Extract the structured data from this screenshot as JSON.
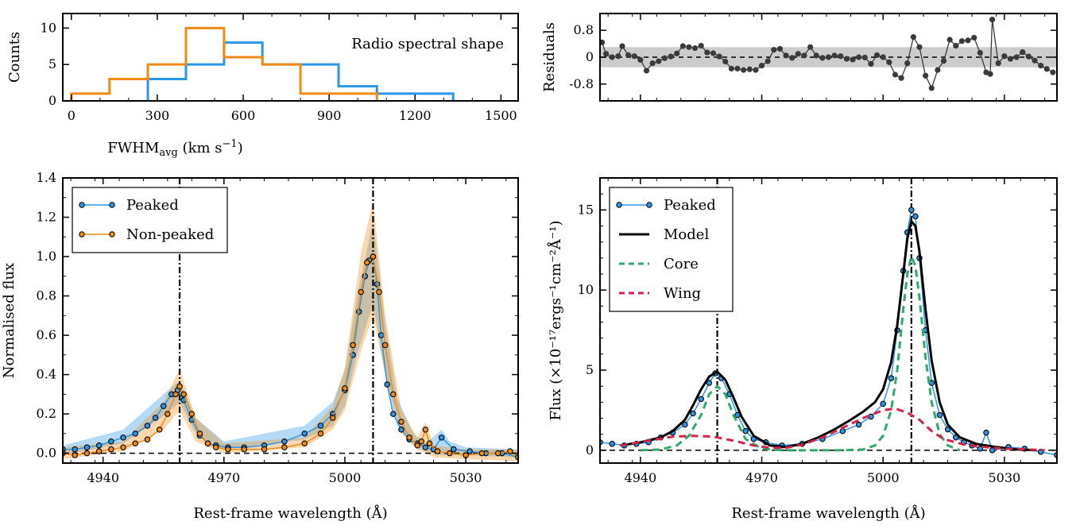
{
  "colors": {
    "peaked": "#2b96e6",
    "non_peaked": "#f08c14",
    "model": "#000000",
    "core": "#2eaa6a",
    "wing": "#d4224a",
    "residual": "#3a3a3a",
    "band": "#cccccc"
  },
  "chart_data": [
    {
      "id": "hist",
      "type": "histogram",
      "title": "",
      "annotation": "Radio spectral shape",
      "xlabel": "FWHM",
      "xlabel_sub": "avg",
      "xlabel_units": " (km s",
      "xlabel_sup": "−1",
      "xlabel_close": ")",
      "ylabel": "Counts",
      "xlim": [
        -30,
        1560
      ],
      "ylim": [
        0,
        12
      ],
      "xticks": [
        0,
        300,
        600,
        900,
        1200,
        1500
      ],
      "xtick_labels": [
        "0",
        "300",
        "600",
        "900",
        "1200",
        "1500"
      ],
      "yticks": [
        0,
        5,
        10
      ],
      "ytick_labels": [
        "0",
        "5",
        "10"
      ],
      "series": [
        {
          "key": "peaked",
          "edges": [
            267,
            400,
            533,
            667,
            800,
            933,
            1067,
            1200,
            1333
          ],
          "counts": [
            3,
            5,
            8,
            5,
            5,
            2,
            1,
            1
          ]
        },
        {
          "key": "non_peaked",
          "edges": [
            0,
            133,
            267,
            400,
            533,
            667,
            800,
            933,
            1067
          ],
          "counts": [
            1,
            3,
            5,
            10,
            6,
            5,
            1,
            1
          ]
        }
      ],
      "xbaseline": [
        1067,
        1545
      ]
    },
    {
      "id": "resid",
      "type": "line",
      "title": "",
      "ylabel": "Residuals",
      "xlim": [
        4930,
        5043
      ],
      "ylim": [
        -1.3,
        1.3
      ],
      "yticks": [
        -0.8,
        0,
        0.8
      ],
      "ytick_labels": [
        "-0.8",
        "0",
        "0.8"
      ],
      "band": [
        -0.3,
        0.3
      ],
      "points": [
        [
          4930.5,
          0.44
        ],
        [
          4931.5,
          0.1
        ],
        [
          4933,
          0.0
        ],
        [
          4934.5,
          0.03
        ],
        [
          4935.5,
          0.33
        ],
        [
          4937,
          0.06
        ],
        [
          4938.5,
          0.03
        ],
        [
          4940,
          -0.08
        ],
        [
          4941.5,
          -0.4
        ],
        [
          4943,
          -0.18
        ],
        [
          4944.5,
          -0.12
        ],
        [
          4946,
          -0.03
        ],
        [
          4947.5,
          0.02
        ],
        [
          4949,
          0.11
        ],
        [
          4950.5,
          0.33
        ],
        [
          4952,
          0.3
        ],
        [
          4953.5,
          0.27
        ],
        [
          4955,
          0.34
        ],
        [
          4956.5,
          0.14
        ],
        [
          4958,
          0.12
        ],
        [
          4959.5,
          0.02
        ],
        [
          4961,
          -0.13
        ],
        [
          4962.5,
          -0.34
        ],
        [
          4964,
          -0.34
        ],
        [
          4965.5,
          -0.38
        ],
        [
          4967,
          -0.36
        ],
        [
          4968.5,
          -0.38
        ],
        [
          4970,
          -0.25
        ],
        [
          4971.5,
          -0.12
        ],
        [
          4973,
          0.22
        ],
        [
          4974.5,
          0.25
        ],
        [
          4976,
          0.05
        ],
        [
          4977.5,
          -0.02
        ],
        [
          4979,
          0.1
        ],
        [
          4980.5,
          0.05
        ],
        [
          4982,
          0.3
        ],
        [
          4983.5,
          0.05
        ],
        [
          4985,
          -0.02
        ],
        [
          4986.5,
          0.0
        ],
        [
          4988,
          0.05
        ],
        [
          4989.5,
          0.03
        ],
        [
          4991,
          -0.05
        ],
        [
          4992.5,
          -0.07
        ],
        [
          4994,
          0.0
        ],
        [
          4995.5,
          -0.01
        ],
        [
          4997,
          -0.2
        ],
        [
          4998.5,
          0.06
        ],
        [
          5000,
          0.0
        ],
        [
          5001.5,
          -0.15
        ],
        [
          5003,
          -0.52
        ],
        [
          5004.5,
          -0.62
        ],
        [
          5006,
          -0.18
        ],
        [
          5007.5,
          0.6
        ],
        [
          5009,
          0.3
        ],
        [
          5010.5,
          -0.55
        ],
        [
          5012,
          -0.92
        ],
        [
          5013.5,
          -0.38
        ],
        [
          5015,
          -0.11
        ],
        [
          5016.5,
          0.52
        ],
        [
          5018,
          0.34
        ],
        [
          5019.5,
          0.48
        ],
        [
          5021,
          0.5
        ],
        [
          5022.5,
          0.58
        ],
        [
          5024,
          0.13
        ],
        [
          5025.5,
          -0.45
        ],
        [
          5026.5,
          -0.5
        ],
        [
          5027,
          1.12
        ],
        [
          5028.5,
          -0.18
        ],
        [
          5030,
          0.03
        ],
        [
          5031.5,
          -0.05
        ],
        [
          5033,
          0.0
        ],
        [
          5034.5,
          0.15
        ],
        [
          5036,
          0.02
        ],
        [
          5037.5,
          -0.1
        ],
        [
          5039,
          -0.25
        ],
        [
          5040.5,
          -0.35
        ],
        [
          5042,
          -0.45
        ]
      ]
    },
    {
      "id": "norm",
      "type": "line",
      "title": "",
      "xlabel": "Rest-frame wavelength (Å)",
      "ylabel": "Normalised flux",
      "xlim": [
        4930,
        5043
      ],
      "ylim": [
        -0.05,
        1.4
      ],
      "xticks": [
        4940,
        4970,
        5000,
        5030
      ],
      "xtick_labels": [
        "4940",
        "4970",
        "5000",
        "5030"
      ],
      "yticks": [
        0.0,
        0.2,
        0.4,
        0.6,
        0.8,
        1.0,
        1.2,
        1.4
      ],
      "ytick_labels": [
        "0.0",
        "0.2",
        "0.4",
        "0.6",
        "0.8",
        "1.0",
        "1.2",
        "1.4"
      ],
      "vlines": [
        4959,
        5007
      ],
      "series": [
        {
          "key": "peaked",
          "name": "Peaked",
          "x": [
            4930,
            4933,
            4936,
            4939,
            4942,
            4945,
            4948,
            4951,
            4953,
            4955,
            4957,
            4958.5,
            4960,
            4962,
            4964,
            4966,
            4968,
            4971,
            4975,
            4980,
            4985,
            4990,
            4994,
            4997,
            5000,
            5002,
            5003.5,
            5005,
            5006,
            5007,
            5008,
            5009,
            5010.5,
            5012,
            5014,
            5016,
            5018,
            5020,
            5022,
            5024,
            5027,
            5031,
            5035,
            5039,
            5043
          ],
          "y": [
            0.02,
            0.02,
            0.03,
            0.04,
            0.06,
            0.08,
            0.1,
            0.14,
            0.18,
            0.24,
            0.3,
            0.32,
            0.27,
            0.17,
            0.09,
            0.05,
            0.04,
            0.03,
            0.03,
            0.04,
            0.06,
            0.1,
            0.14,
            0.2,
            0.32,
            0.5,
            0.72,
            0.9,
            0.98,
            1.0,
            0.86,
            0.6,
            0.35,
            0.2,
            0.12,
            0.07,
            0.05,
            0.03,
            0.02,
            0.08,
            0.02,
            0.01,
            0.0,
            0.0,
            -0.02
          ],
          "band_x": [
            4930,
            4945,
            4955,
            4959,
            4963,
            4970,
            4990,
            4997,
            5000,
            5003,
            5007,
            5010,
            5013,
            5017,
            5020,
            5024,
            5026,
            5030,
            5043
          ],
          "band_lo": [
            -0.01,
            0.05,
            0.19,
            0.26,
            0.1,
            0.02,
            0.07,
            0.14,
            0.24,
            0.5,
            0.76,
            0.4,
            0.14,
            0.04,
            0.01,
            -0.01,
            -0.01,
            -0.01,
            -0.02
          ],
          "band_hi": [
            0.04,
            0.12,
            0.3,
            0.37,
            0.18,
            0.06,
            0.14,
            0.26,
            0.42,
            0.8,
            1.18,
            0.66,
            0.28,
            0.1,
            0.05,
            0.12,
            0.06,
            0.03,
            0.02
          ]
        },
        {
          "key": "non_peaked",
          "name": "Non-peaked",
          "x": [
            4930,
            4933,
            4936,
            4939,
            4942,
            4945,
            4948,
            4951,
            4954,
            4956,
            4958,
            4959,
            4960,
            4962,
            4964,
            4966,
            4968,
            4971,
            4975,
            4980,
            4985,
            4990,
            4994,
            4997,
            5000,
            5002,
            5004,
            5005.5,
            5007,
            5008.5,
            5010,
            5012,
            5014,
            5016,
            5018,
            5019,
            5020,
            5021,
            5023,
            5026,
            5030,
            5034,
            5038,
            5041,
            5043
          ],
          "y": [
            0.0,
            -0.01,
            0.0,
            0.01,
            0.02,
            0.03,
            0.05,
            0.07,
            0.12,
            0.2,
            0.3,
            0.34,
            0.3,
            0.2,
            0.1,
            0.05,
            0.03,
            0.02,
            0.02,
            0.02,
            0.03,
            0.05,
            0.1,
            0.18,
            0.33,
            0.55,
            0.82,
            0.97,
            1.0,
            0.82,
            0.55,
            0.3,
            0.16,
            0.08,
            0.04,
            0.06,
            0.12,
            0.05,
            0.01,
            0.0,
            -0.01,
            0.0,
            0.0,
            0.01,
            -0.02
          ],
          "band_x": [
            4930,
            4945,
            4955,
            4959,
            4963,
            4970,
            4990,
            4997,
            5000,
            5004,
            5007,
            5010,
            5014,
            5018,
            5020,
            5022,
            5030,
            5043
          ],
          "band_lo": [
            -0.03,
            0.01,
            0.12,
            0.22,
            0.06,
            0.0,
            0.03,
            0.12,
            0.22,
            0.52,
            0.7,
            0.4,
            0.1,
            0.02,
            0.0,
            -0.02,
            -0.03,
            -0.04
          ],
          "band_hi": [
            0.03,
            0.06,
            0.26,
            0.43,
            0.18,
            0.05,
            0.08,
            0.24,
            0.44,
            1.02,
            1.28,
            0.7,
            0.22,
            0.08,
            0.16,
            0.04,
            0.02,
            0.02
          ]
        }
      ],
      "legend": {
        "location": "upper left",
        "entries": [
          "Peaked",
          "Non-peaked"
        ]
      }
    },
    {
      "id": "flux",
      "type": "line",
      "title": "",
      "xlabel": "Rest-frame wavelength (Å)",
      "ylabel": "Flux (×10⁻¹⁷ergs⁻¹cm⁻²Å⁻¹)",
      "xlim": [
        4930,
        5043
      ],
      "ylim": [
        -0.8,
        17
      ],
      "xticks": [
        4940,
        4970,
        5000,
        5030
      ],
      "xtick_labels": [
        "4940",
        "4970",
        "5000",
        "5030"
      ],
      "yticks": [
        0,
        5,
        10,
        15
      ],
      "ytick_labels": [
        "0",
        "5",
        "10",
        "15"
      ],
      "vlines": [
        4959,
        5007
      ],
      "series": [
        {
          "key": "peaked",
          "name": "Peaked",
          "x": [
            4930,
            4933,
            4936,
            4939,
            4942,
            4945,
            4948,
            4951,
            4953,
            4955,
            4957,
            4958.5,
            4960,
            4962,
            4964,
            4966,
            4968,
            4971,
            4975,
            4980,
            4985,
            4990,
            4994,
            4997,
            5000,
            5002,
            5003.5,
            5005,
            5006,
            5007,
            5008,
            5009,
            5010.5,
            5012,
            5014,
            5016,
            5018,
            5020,
            5022,
            5024,
            5025.5,
            5027,
            5031,
            5035,
            5039,
            5043
          ],
          "y": [
            0.5,
            0.4,
            0.3,
            0.4,
            0.5,
            0.8,
            1.1,
            1.6,
            2.3,
            3.2,
            4.2,
            4.8,
            4.5,
            3.5,
            2.2,
            1.2,
            0.7,
            0.5,
            0.3,
            0.4,
            0.7,
            1.2,
            1.6,
            2.1,
            2.9,
            4.5,
            7.5,
            11.2,
            13.6,
            15.0,
            14.6,
            12.0,
            7.5,
            4.2,
            2.2,
            1.3,
            0.8,
            0.5,
            0.3,
            0.1,
            1.1,
            0.0,
            0.2,
            0.1,
            -0.1,
            -0.3
          ]
        },
        {
          "key": "model",
          "name": "Model",
          "x": [
            4935,
            4940,
            4945,
            4948,
            4951,
            4953,
            4955,
            4957,
            4959,
            4961,
            4963,
            4965,
            4968,
            4972,
            4976,
            4980,
            4984,
            4988,
            4992,
            4995,
            4998,
            5000,
            5002,
            5003.5,
            5005,
            5006,
            5007,
            5008,
            5009,
            5010.5,
            5012,
            5014,
            5016,
            5019,
            5023,
            5028,
            5033,
            5038
          ],
          "y": [
            0.3,
            0.5,
            0.8,
            1.2,
            1.9,
            2.8,
            3.8,
            4.6,
            4.9,
            4.4,
            3.3,
            2.1,
            0.9,
            0.3,
            0.2,
            0.4,
            0.8,
            1.3,
            1.9,
            2.4,
            3.0,
            3.8,
            5.5,
            7.8,
            11.0,
            13.2,
            14.3,
            14.0,
            12.4,
            8.8,
            5.6,
            3.0,
            1.6,
            0.8,
            0.4,
            0.2,
            0.05,
            0.0
          ]
        },
        {
          "key": "core",
          "name": "Core",
          "x": [
            4940,
            4945,
            4949,
            4952,
            4955,
            4957,
            4959,
            4961,
            4963,
            4966,
            4970,
            4975,
            4990,
            4995,
            4998,
            5000,
            5002,
            5003.5,
            5005,
            5006,
            5007,
            5008,
            5009,
            5010.5,
            5012,
            5014,
            5016,
            5019
          ],
          "y": [
            0.0,
            0.05,
            0.3,
            0.9,
            2.2,
            3.5,
            4.0,
            3.5,
            2.2,
            0.7,
            0.1,
            0.0,
            0.0,
            0.05,
            0.3,
            0.9,
            2.5,
            5.0,
            8.8,
            11.0,
            12.1,
            11.5,
            9.5,
            5.8,
            3.0,
            1.0,
            0.3,
            0.0
          ]
        },
        {
          "key": "wing",
          "name": "Wing",
          "x": [
            4935,
            4942,
            4948,
            4953,
            4958,
            4963,
            4968,
            4972,
            4976,
            4980,
            4985,
            4990,
            4995,
            5000,
            5003,
            5006,
            5009,
            5012,
            5015,
            5020,
            5025,
            5030,
            5036,
            5040
          ],
          "y": [
            0.3,
            0.6,
            0.85,
            0.9,
            0.85,
            0.6,
            0.3,
            0.15,
            0.15,
            0.35,
            0.8,
            1.4,
            2.0,
            2.5,
            2.6,
            2.35,
            1.9,
            1.2,
            0.7,
            0.35,
            0.2,
            0.1,
            0.05,
            0.0
          ]
        }
      ],
      "legend": {
        "location": "upper left",
        "entries": [
          "Peaked",
          "Model",
          "Core",
          "Wing"
        ]
      }
    }
  ]
}
